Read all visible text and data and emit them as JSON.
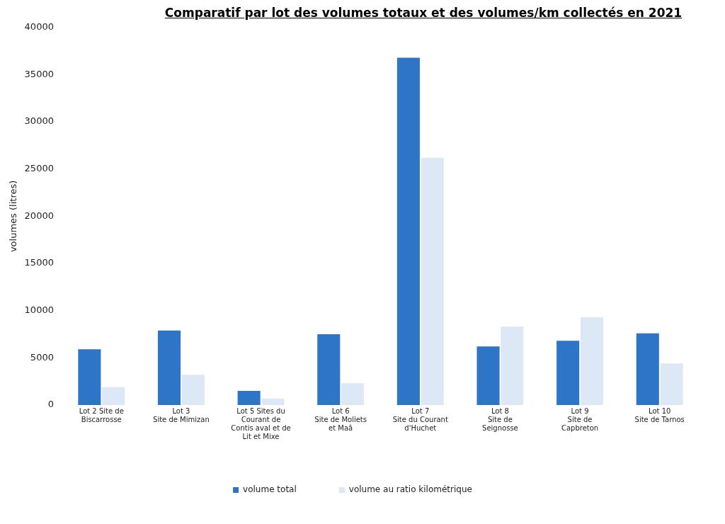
{
  "chart_data": {
    "type": "bar",
    "title": "Comparatif par lot des volumes totaux et des volumes/km collectés en 2021",
    "ylabel": "volumes (litres)",
    "categories": [
      "Lot 2 Site de\nBiscarrosse",
      "Lot 3\nSite de Mimizan",
      "Lot 5 Sites du\nCourant de\nContis aval et de\nLit et Mixe",
      "Lot 6\nSite de Moliets\net Maâ",
      "Lot 7\nSite du Courant\nd'Huchet",
      "Lot 8\nSite de\nSeignosse",
      "Lot 9\nSite de\nCapbreton",
      "Lot 10\nSite de Tarnos"
    ],
    "series": [
      {
        "name": "volume total",
        "color": "#2e75c8",
        "values": [
          5900,
          7900,
          1500,
          7500,
          36800,
          6200,
          6800,
          7600
        ]
      },
      {
        "name": "volume au ratio kilométrique",
        "color": "#dce8f5",
        "values": [
          1900,
          3200,
          700,
          2300,
          26200,
          8300,
          9300,
          4400
        ]
      }
    ],
    "ylim": [
      0,
      40000
    ],
    "yticks": [
      0,
      5000,
      10000,
      15000,
      20000,
      25000,
      30000,
      35000,
      40000
    ],
    "grid": false,
    "legend": "bottom"
  }
}
